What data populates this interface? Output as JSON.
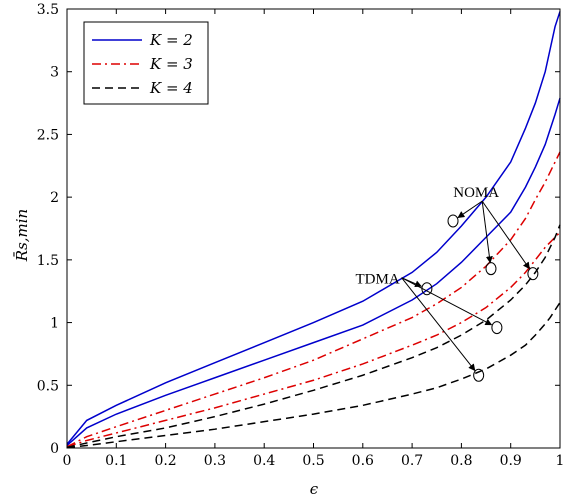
{
  "chart_data": {
    "type": "line",
    "title": "",
    "xlabel": "ϵ",
    "ylabel": "R̄s,min",
    "xlim": [
      0,
      1
    ],
    "ylim": [
      0,
      3.5
    ],
    "xticks": [
      "0",
      "0.1",
      "0.2",
      "0.3",
      "0.4",
      "0.5",
      "0.6",
      "0.7",
      "0.8",
      "0.9",
      "1"
    ],
    "yticks": [
      "0",
      "0.5",
      "1",
      "1.5",
      "2",
      "2.5",
      "3",
      "3.5"
    ],
    "grid": false,
    "legend": {
      "position": "top-left",
      "entries": [
        {
          "label": "K = 2",
          "color": "#0000cc",
          "dash": "solid"
        },
        {
          "label": "K = 3",
          "color": "#dd0000",
          "dash": "dashdot"
        },
        {
          "label": "K = 4",
          "color": "#000000",
          "dash": "dashed"
        }
      ]
    },
    "x": [
      0,
      0.04,
      0.1,
      0.2,
      0.3,
      0.4,
      0.5,
      0.6,
      0.7,
      0.75,
      0.8,
      0.85,
      0.9,
      0.93,
      0.95,
      0.97,
      0.98,
      0.99,
      1.0
    ],
    "series": [
      {
        "group": "K = 2",
        "scheme": "NOMA",
        "color": "#0000cc",
        "dash": "solid",
        "values": [
          0.03,
          0.22,
          0.34,
          0.52,
          0.68,
          0.84,
          1.0,
          1.17,
          1.4,
          1.56,
          1.77,
          2.0,
          2.28,
          2.55,
          2.75,
          3.0,
          3.18,
          3.36,
          3.48
        ]
      },
      {
        "group": "K = 2",
        "scheme": "TDMA",
        "color": "#0000cc",
        "dash": "solid",
        "values": [
          0.02,
          0.16,
          0.27,
          0.42,
          0.56,
          0.7,
          0.84,
          0.98,
          1.18,
          1.31,
          1.48,
          1.68,
          1.88,
          2.08,
          2.24,
          2.42,
          2.54,
          2.66,
          2.79
        ]
      },
      {
        "group": "K = 3",
        "scheme": "NOMA",
        "color": "#dd0000",
        "dash": "dashdot",
        "values": [
          0.01,
          0.09,
          0.17,
          0.3,
          0.43,
          0.56,
          0.7,
          0.87,
          1.04,
          1.15,
          1.28,
          1.45,
          1.66,
          1.83,
          1.98,
          2.12,
          2.2,
          2.28,
          2.36
        ]
      },
      {
        "group": "K = 3",
        "scheme": "TDMA",
        "color": "#dd0000",
        "dash": "dashdot",
        "values": [
          0.01,
          0.06,
          0.12,
          0.22,
          0.32,
          0.43,
          0.54,
          0.67,
          0.82,
          0.9,
          1.0,
          1.12,
          1.28,
          1.4,
          1.5,
          1.6,
          1.64,
          1.68,
          1.72
        ]
      },
      {
        "group": "K = 4",
        "scheme": "NOMA",
        "color": "#000000",
        "dash": "dashed",
        "values": [
          0.005,
          0.04,
          0.09,
          0.16,
          0.25,
          0.35,
          0.46,
          0.58,
          0.72,
          0.8,
          0.9,
          1.02,
          1.18,
          1.3,
          1.4,
          1.52,
          1.6,
          1.68,
          1.78
        ]
      },
      {
        "group": "K = 4",
        "scheme": "TDMA",
        "color": "#000000",
        "dash": "dashed",
        "values": [
          0.003,
          0.02,
          0.05,
          0.1,
          0.15,
          0.21,
          0.27,
          0.34,
          0.43,
          0.48,
          0.55,
          0.63,
          0.74,
          0.82,
          0.9,
          0.99,
          1.04,
          1.1,
          1.16
        ]
      }
    ],
    "annotations": [
      {
        "text": "NOMA",
        "text_at": [
          0.83,
          2.0
        ],
        "targets": [
          [
            0.783,
            1.81
          ],
          [
            0.86,
            1.43
          ],
          [
            0.945,
            1.39
          ]
        ]
      },
      {
        "text": "TDMA",
        "text_at": [
          0.63,
          1.31
        ],
        "targets": [
          [
            0.73,
            1.27
          ],
          [
            0.872,
            0.96
          ],
          [
            0.835,
            0.58
          ]
        ]
      }
    ]
  }
}
